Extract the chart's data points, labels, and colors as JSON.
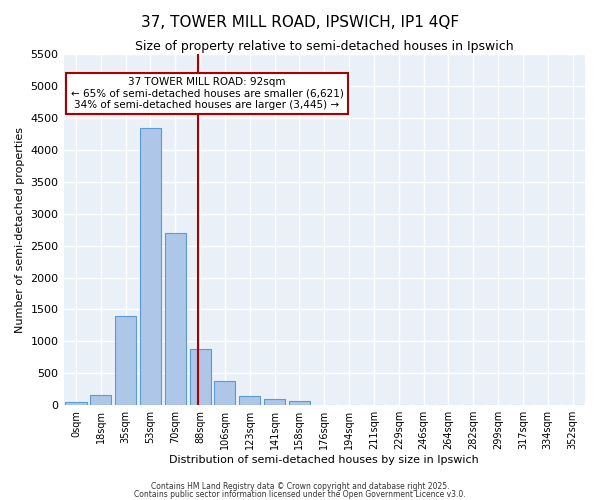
{
  "title": "37, TOWER MILL ROAD, IPSWICH, IP1 4QF",
  "subtitle": "Size of property relative to semi-detached houses in Ipswich",
  "xlabel": "Distribution of semi-detached houses by size in Ipswich",
  "ylabel": "Number of semi-detached properties",
  "bar_labels": [
    "0sqm",
    "18sqm",
    "35sqm",
    "53sqm",
    "70sqm",
    "88sqm",
    "106sqm",
    "123sqm",
    "141sqm",
    "158sqm",
    "176sqm",
    "194sqm",
    "211sqm",
    "229sqm",
    "246sqm",
    "264sqm",
    "282sqm",
    "299sqm",
    "317sqm",
    "334sqm",
    "352sqm"
  ],
  "bar_values": [
    50,
    160,
    1400,
    4350,
    2700,
    880,
    380,
    150,
    90,
    60,
    0,
    0,
    0,
    0,
    0,
    0,
    0,
    0,
    0,
    0,
    0
  ],
  "bar_color": "#aec6e8",
  "bar_edge_color": "#5b9bd5",
  "property_line_x": 4.925,
  "property_line_color": "#aa0000",
  "annotation_title": "37 TOWER MILL ROAD: 92sqm",
  "annotation_line1": "← 65% of semi-detached houses are smaller (6,621)",
  "annotation_line2": "34% of semi-detached houses are larger (3,445) →",
  "annotation_box_color": "#aa0000",
  "ylim": [
    0,
    5500
  ],
  "yticks": [
    0,
    500,
    1000,
    1500,
    2000,
    2500,
    3000,
    3500,
    4000,
    4500,
    5000,
    5500
  ],
  "bg_color": "#eaf0f8",
  "grid_color": "#ffffff",
  "footer1": "Contains HM Land Registry data © Crown copyright and database right 2025.",
  "footer2": "Contains public sector information licensed under the Open Government Licence v3.0."
}
